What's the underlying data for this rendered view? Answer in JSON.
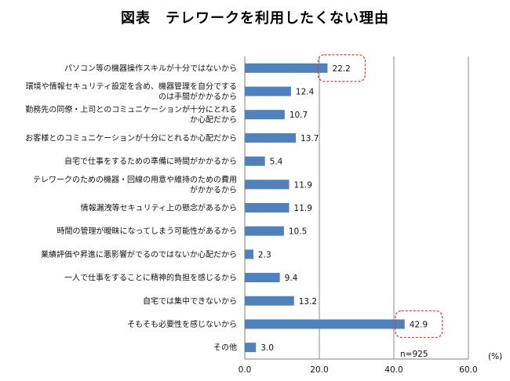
{
  "chart_data": {
    "type": "bar",
    "orientation": "horizontal",
    "title": "図表　テレワークを利用したくない理由",
    "categories": [
      [
        "パソコン等の機器操作スキルが十分ではないから"
      ],
      [
        "環境や情報セキュリティ設定を含め、機器管理を自分でする",
        "のは手間がかかるから"
      ],
      [
        "勤務先の同僚・上司とのコミュニケーションが十分にとれる",
        "か心配だから"
      ],
      [
        "お客様とのコミュニケーションが十分にとれるか心配だから"
      ],
      [
        "自宅で仕事をするための準備に時間がかかるから"
      ],
      [
        "テレワークのための機器・回線の用意や維持のための費用",
        "がかかるから"
      ],
      [
        "情報漏洩等セキュリティ上の懸念があるから"
      ],
      [
        "時間の管理が曖昧になってしまう可能性があるから"
      ],
      [
        "業績評価や昇進に悪影響がでるのではないか心配だから"
      ],
      [
        "一人で仕事をすることに精神的負担を感じるから"
      ],
      [
        "自宅では集中できないから"
      ],
      [
        "そもそも必要性を感じないから"
      ],
      [
        "その他"
      ]
    ],
    "values": [
      22.2,
      12.4,
      10.7,
      13.7,
      5.4,
      11.9,
      11.9,
      10.5,
      2.3,
      9.4,
      13.2,
      42.9,
      3.0
    ],
    "value_labels": [
      "22.2",
      "12.4",
      "10.7",
      "13.7",
      "5.4",
      "11.9",
      "11.9",
      "10.5",
      "2.3",
      "9.4",
      "13.2",
      "42.9",
      "3.0"
    ],
    "xlim": [
      0,
      60
    ],
    "xticks": [
      "0.0",
      "20.0",
      "40.0",
      "60.0"
    ],
    "unit": "(%)",
    "note": "n=925",
    "highlighted_indices": [
      0,
      11
    ],
    "grid": true,
    "bar_color": "#4f81bd",
    "highlight_color": "#e53935"
  }
}
